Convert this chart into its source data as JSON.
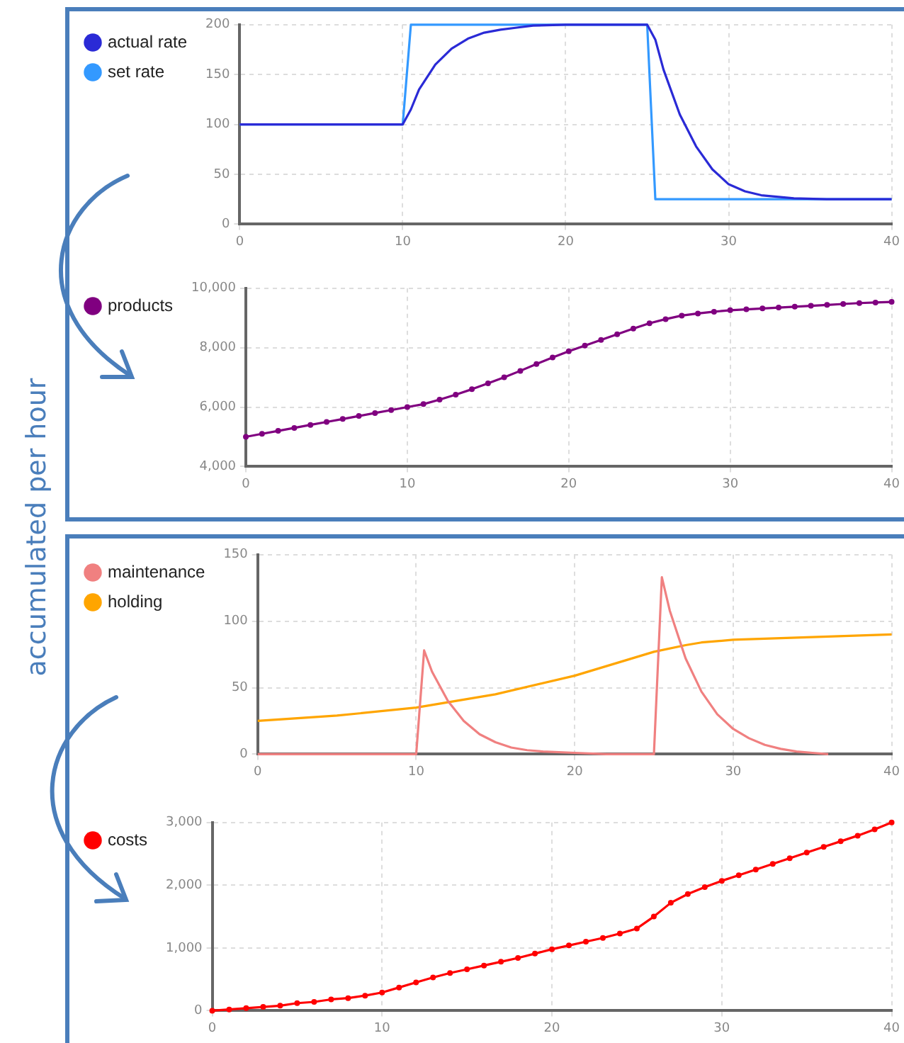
{
  "chart_data": [
    {
      "type": "line",
      "xlim": [
        0,
        40
      ],
      "xticks": [
        0,
        10,
        20,
        30,
        40
      ],
      "ylim": [
        0,
        200
      ],
      "yticks": [
        0,
        50,
        100,
        150,
        200
      ],
      "grid": true,
      "legend": "left",
      "series": [
        {
          "name": "actual rate",
          "color": "#2a2ad6",
          "x": [
            0,
            10,
            10.5,
            11,
            12,
            13,
            14,
            15,
            16,
            17,
            18,
            20,
            25,
            25.5,
            26,
            27,
            28,
            29,
            30,
            31,
            32,
            34,
            36,
            40
          ],
          "values": [
            100,
            100,
            115,
            135,
            160,
            176,
            186,
            192,
            195,
            197,
            199,
            200,
            200,
            185,
            155,
            110,
            78,
            55,
            40,
            33,
            29,
            26,
            25,
            25
          ]
        },
        {
          "name": "set rate",
          "color": "#3399ff",
          "x": [
            0,
            10,
            10.5,
            25,
            25.5,
            40
          ],
          "values": [
            100,
            100,
            200,
            200,
            25,
            25
          ]
        }
      ]
    },
    {
      "type": "line",
      "xlim": [
        0,
        40
      ],
      "xticks": [
        0,
        10,
        20,
        30,
        40
      ],
      "ylim": [
        4000,
        10000
      ],
      "yticks": [
        {
          "value": 4000,
          "label": "4,000"
        },
        {
          "value": 6000,
          "label": "6,000"
        },
        {
          "value": 8000,
          "label": "8,000"
        },
        {
          "value": 10000,
          "label": "10,000"
        }
      ],
      "grid": true,
      "legend": "left",
      "marker": "circle",
      "annotations": [
        "accumulated per hour"
      ],
      "x": [
        0,
        1,
        2,
        3,
        4,
        5,
        6,
        7,
        8,
        9,
        10,
        11,
        12,
        13,
        14,
        15,
        16,
        17,
        18,
        19,
        20,
        21,
        22,
        23,
        24,
        25,
        26,
        27,
        28,
        29,
        30,
        31,
        32,
        33,
        34,
        35,
        36,
        37,
        38,
        39,
        40
      ],
      "series": [
        {
          "name": "products",
          "color": "#800080",
          "values": [
            5000,
            5100,
            5200,
            5300,
            5400,
            5500,
            5600,
            5700,
            5800,
            5900,
            6000,
            6100,
            6250,
            6420,
            6600,
            6800,
            7000,
            7220,
            7450,
            7670,
            7880,
            8070,
            8260,
            8450,
            8640,
            8820,
            8960,
            9080,
            9150,
            9210,
            9260,
            9290,
            9320,
            9350,
            9380,
            9410,
            9440,
            9470,
            9500,
            9520,
            9540
          ]
        }
      ]
    },
    {
      "type": "line",
      "xlim": [
        0,
        40
      ],
      "xticks": [
        0,
        10,
        20,
        30,
        40
      ],
      "ylim": [
        0,
        150
      ],
      "yticks": [
        0,
        50,
        100,
        150
      ],
      "grid": true,
      "legend": "left",
      "series": [
        {
          "name": "maintenance",
          "color": "#f08080",
          "x": [
            0,
            10,
            10.5,
            11,
            12,
            13,
            14,
            15,
            16,
            17,
            18,
            20,
            22,
            25,
            25.5,
            26,
            27,
            28,
            29,
            30,
            31,
            32,
            33,
            34,
            35,
            36
          ],
          "values": [
            0,
            0,
            78,
            62,
            40,
            25,
            15,
            9,
            5,
            3,
            2,
            1,
            0,
            0,
            133,
            108,
            72,
            47,
            30,
            19,
            12,
            7,
            4,
            2,
            1,
            0
          ]
        },
        {
          "name": "holding",
          "color": "#ffa500",
          "x": [
            0,
            5,
            10,
            15,
            20,
            25,
            27,
            28,
            30,
            35,
            40
          ],
          "values": [
            25,
            29,
            35,
            45,
            59,
            77,
            82,
            84,
            86,
            88,
            90
          ]
        }
      ]
    },
    {
      "type": "line",
      "xlim": [
        0,
        40
      ],
      "xticks": [
        0,
        10,
        20,
        30,
        40
      ],
      "ylim": [
        0,
        3000
      ],
      "yticks": [
        0,
        {
          "value": 1000,
          "label": "1,000"
        },
        {
          "value": 2000,
          "label": "2,000"
        },
        {
          "value": 3000,
          "label": "3,000"
        }
      ],
      "grid": true,
      "legend": "left",
      "marker": "circle",
      "x": [
        0,
        1,
        2,
        3,
        4,
        5,
        6,
        7,
        8,
        9,
        10,
        11,
        12,
        13,
        14,
        15,
        16,
        17,
        18,
        19,
        20,
        21,
        22,
        23,
        24,
        25,
        26,
        27,
        28,
        29,
        30,
        31,
        32,
        33,
        34,
        35,
        36,
        37,
        38,
        39,
        40
      ],
      "series": [
        {
          "name": "costs",
          "color": "#ff0000",
          "values": [
            0,
            20,
            40,
            60,
            80,
            120,
            140,
            180,
            200,
            240,
            290,
            370,
            450,
            530,
            600,
            660,
            720,
            780,
            840,
            910,
            980,
            1040,
            1100,
            1160,
            1230,
            1310,
            1500,
            1720,
            1860,
            1970,
            2070,
            2160,
            2250,
            2340,
            2430,
            2520,
            2610,
            2700,
            2790,
            2890,
            3000
          ]
        }
      ]
    }
  ]
}
